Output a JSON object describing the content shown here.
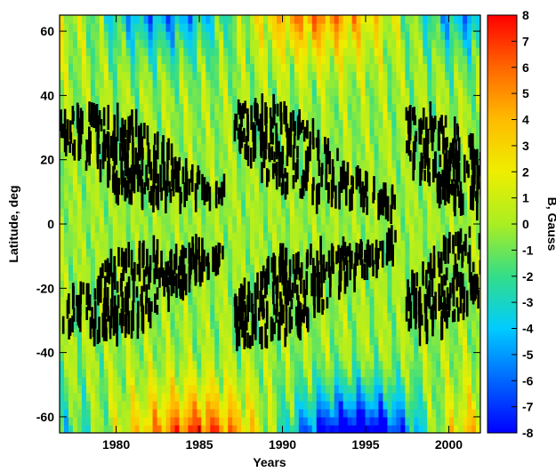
{
  "chart_data": {
    "type": "heatmap",
    "title": "",
    "xlabel": "Years",
    "ylabel": "Latitude, deg",
    "xlim": [
      1976.6,
      2001.9
    ],
    "ylim": [
      -65,
      65
    ],
    "x_ticks": [
      1980,
      1985,
      1990,
      1995,
      2000
    ],
    "x_tick_labels": [
      "1980",
      "1985",
      "1990",
      "1995",
      "2000"
    ],
    "y_ticks": [
      -60,
      -40,
      -20,
      0,
      20,
      40,
      60
    ],
    "y_tick_labels": [
      "-60",
      "-40",
      "-20",
      "0",
      "20",
      "40",
      "60"
    ],
    "colorbar": {
      "label": "B, Gauss",
      "range": [
        -8,
        8
      ],
      "ticks": [
        -8,
        -7,
        -6,
        -5,
        -4,
        -3,
        -2,
        -1,
        0,
        1,
        2,
        3,
        4,
        5,
        6,
        7,
        8
      ],
      "tick_labels": [
        "-8",
        "-7",
        "-6",
        "-5",
        "-4",
        "-3",
        "-2",
        "-1",
        "0",
        "1",
        "2",
        "3",
        "4",
        "5",
        "6",
        "7",
        "8"
      ],
      "colormap": [
        "#0000ff",
        "#0066ff",
        "#00ccff",
        "#33dd88",
        "#aaee22",
        "#eeee00",
        "#ffbb00",
        "#ff6600",
        "#ff0000"
      ]
    },
    "saturated_color": "#000000",
    "grid": false
  }
}
